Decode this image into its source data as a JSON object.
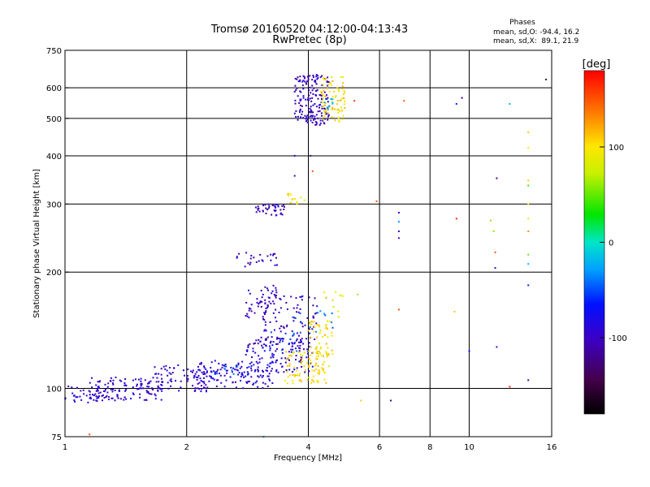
{
  "chart_data": {
    "type": "scatter",
    "title": "Tromsø 20160520 04:12:00-04:13:43",
    "subtitle": "RwPretec (8p)",
    "xlabel": "Frequency [MHz]",
    "ylabel": "Stationary phase Virtual Height [km]",
    "x_scale": "log",
    "y_scale": "log",
    "xlim": [
      1,
      16
    ],
    "ylim": [
      75,
      750
    ],
    "x_ticks": [
      1,
      2,
      4,
      6,
      8,
      10,
      16
    ],
    "y_ticks": [
      75,
      100,
      200,
      300,
      400,
      500,
      600,
      750
    ],
    "x_grid": [
      2,
      4,
      6,
      8,
      10
    ],
    "y_grid": [
      100,
      200,
      300,
      400,
      500,
      600
    ],
    "grid": true,
    "stats": {
      "title": "Phases",
      "line_o": "mean, sd,O: -94.4, 16.2",
      "line_x": "mean, sd,X:  89.1, 21.9"
    },
    "colorbar": {
      "label": "[deg]",
      "range": [
        -180,
        180
      ],
      "ticks": [
        100,
        0,
        -100
      ]
    },
    "clusters": [
      {
        "f": [
          1.0,
          1.25
        ],
        "h": [
          91,
          102
        ],
        "phase": -95,
        "n": 40
      },
      {
        "f": [
          1.15,
          1.75
        ],
        "h": [
          93,
          107
        ],
        "phase": -95,
        "n": 120
      },
      {
        "f": [
          1.6,
          2.3
        ],
        "h": [
          98,
          115
        ],
        "phase": -98,
        "n": 80
      },
      {
        "f": [
          2.1,
          3.3
        ],
        "h": [
          100,
          118
        ],
        "phase": -90,
        "n": 120
      },
      {
        "f": [
          2.3,
          3.0
        ],
        "h": [
          105,
          115
        ],
        "phase": -55,
        "n": 20
      },
      {
        "f": [
          2.8,
          4.1
        ],
        "h": [
          110,
          135
        ],
        "phase": -95,
        "n": 110
      },
      {
        "f": [
          3.0,
          4.2
        ],
        "h": [
          130,
          175
        ],
        "phase": -100,
        "n": 90
      },
      {
        "f": [
          3.2,
          4.1
        ],
        "h": [
          120,
          140
        ],
        "phase": -60,
        "n": 25
      },
      {
        "f": [
          2.8,
          3.4
        ],
        "h": [
          150,
          185
        ],
        "phase": -100,
        "n": 50
      },
      {
        "f": [
          3.5,
          4.5
        ],
        "h": [
          103,
          125
        ],
        "phase": 100,
        "n": 90
      },
      {
        "f": [
          4.0,
          4.6
        ],
        "h": [
          120,
          150
        ],
        "phase": 100,
        "n": 50
      },
      {
        "f": [
          3.6,
          4.6
        ],
        "h": [
          140,
          175
        ],
        "phase": -50,
        "n": 18
      },
      {
        "f": [
          4.2,
          4.9
        ],
        "h": [
          150,
          178
        ],
        "phase": 90,
        "n": 10
      },
      {
        "f": [
          2.6,
          3.4
        ],
        "h": [
          205,
          225
        ],
        "phase": -100,
        "n": 25
      },
      {
        "f": [
          2.95,
          3.5
        ],
        "h": [
          280,
          300
        ],
        "phase": -105,
        "n": 40
      },
      {
        "f": [
          3.5,
          3.95
        ],
        "h": [
          300,
          320
        ],
        "phase": 100,
        "n": 12
      },
      {
        "f": [
          3.7,
          4.5
        ],
        "h": [
          480,
          650
        ],
        "phase": -100,
        "n": 170
      },
      {
        "f": [
          4.3,
          4.95
        ],
        "h": [
          490,
          640
        ],
        "phase": 100,
        "n": 80
      },
      {
        "f": [
          4.35,
          4.6
        ],
        "h": [
          520,
          570
        ],
        "phase": -30,
        "n": 10
      }
    ],
    "points": [
      {
        "x": 1.15,
        "y": 76,
        "phase": 150
      },
      {
        "x": 3.1,
        "y": 75,
        "phase": -20
      },
      {
        "x": 5.4,
        "y": 93,
        "phase": 110
      },
      {
        "x": 6.4,
        "y": 93,
        "phase": -120
      },
      {
        "x": 5.3,
        "y": 175,
        "phase": 60
      },
      {
        "x": 6.7,
        "y": 160,
        "phase": 150
      },
      {
        "x": 5.9,
        "y": 305,
        "phase": 150
      },
      {
        "x": 6.7,
        "y": 285,
        "phase": -90
      },
      {
        "x": 6.7,
        "y": 270,
        "phase": -30
      },
      {
        "x": 6.7,
        "y": 255,
        "phase": -90
      },
      {
        "x": 6.7,
        "y": 245,
        "phase": -100
      },
      {
        "x": 6.9,
        "y": 555,
        "phase": 150
      },
      {
        "x": 5.2,
        "y": 555,
        "phase": 160
      },
      {
        "x": 4.05,
        "y": 400,
        "phase": -120
      },
      {
        "x": 3.7,
        "y": 400,
        "phase": -100
      },
      {
        "x": 3.7,
        "y": 355,
        "phase": -90
      },
      {
        "x": 4.1,
        "y": 365,
        "phase": 150
      },
      {
        "x": 9.3,
        "y": 275,
        "phase": 170
      },
      {
        "x": 9.2,
        "y": 158,
        "phase": 110
      },
      {
        "x": 10.0,
        "y": 125,
        "phase": -70
      },
      {
        "x": 9.3,
        "y": 545,
        "phase": -60
      },
      {
        "x": 9.6,
        "y": 565,
        "phase": -120
      },
      {
        "x": 11.3,
        "y": 272,
        "phase": 60
      },
      {
        "x": 11.5,
        "y": 255,
        "phase": 60
      },
      {
        "x": 11.6,
        "y": 225,
        "phase": 150
      },
      {
        "x": 11.6,
        "y": 205,
        "phase": -90
      },
      {
        "x": 11.7,
        "y": 350,
        "phase": -120
      },
      {
        "x": 11.7,
        "y": 128,
        "phase": -100
      },
      {
        "x": 12.6,
        "y": 545,
        "phase": -20
      },
      {
        "x": 12.6,
        "y": 101,
        "phase": 170
      },
      {
        "x": 14.0,
        "y": 460,
        "phase": 110
      },
      {
        "x": 14.0,
        "y": 420,
        "phase": 100
      },
      {
        "x": 14.0,
        "y": 345,
        "phase": 110
      },
      {
        "x": 14.0,
        "y": 335,
        "phase": 40
      },
      {
        "x": 14.0,
        "y": 300,
        "phase": 100
      },
      {
        "x": 14.0,
        "y": 275,
        "phase": 90
      },
      {
        "x": 14.0,
        "y": 255,
        "phase": 130
      },
      {
        "x": 14.0,
        "y": 222,
        "phase": 50
      },
      {
        "x": 14.0,
        "y": 210,
        "phase": -20
      },
      {
        "x": 14.0,
        "y": 185,
        "phase": -60
      },
      {
        "x": 14.0,
        "y": 105,
        "phase": -110
      },
      {
        "x": 15.5,
        "y": 630,
        "phase": -140
      }
    ]
  }
}
